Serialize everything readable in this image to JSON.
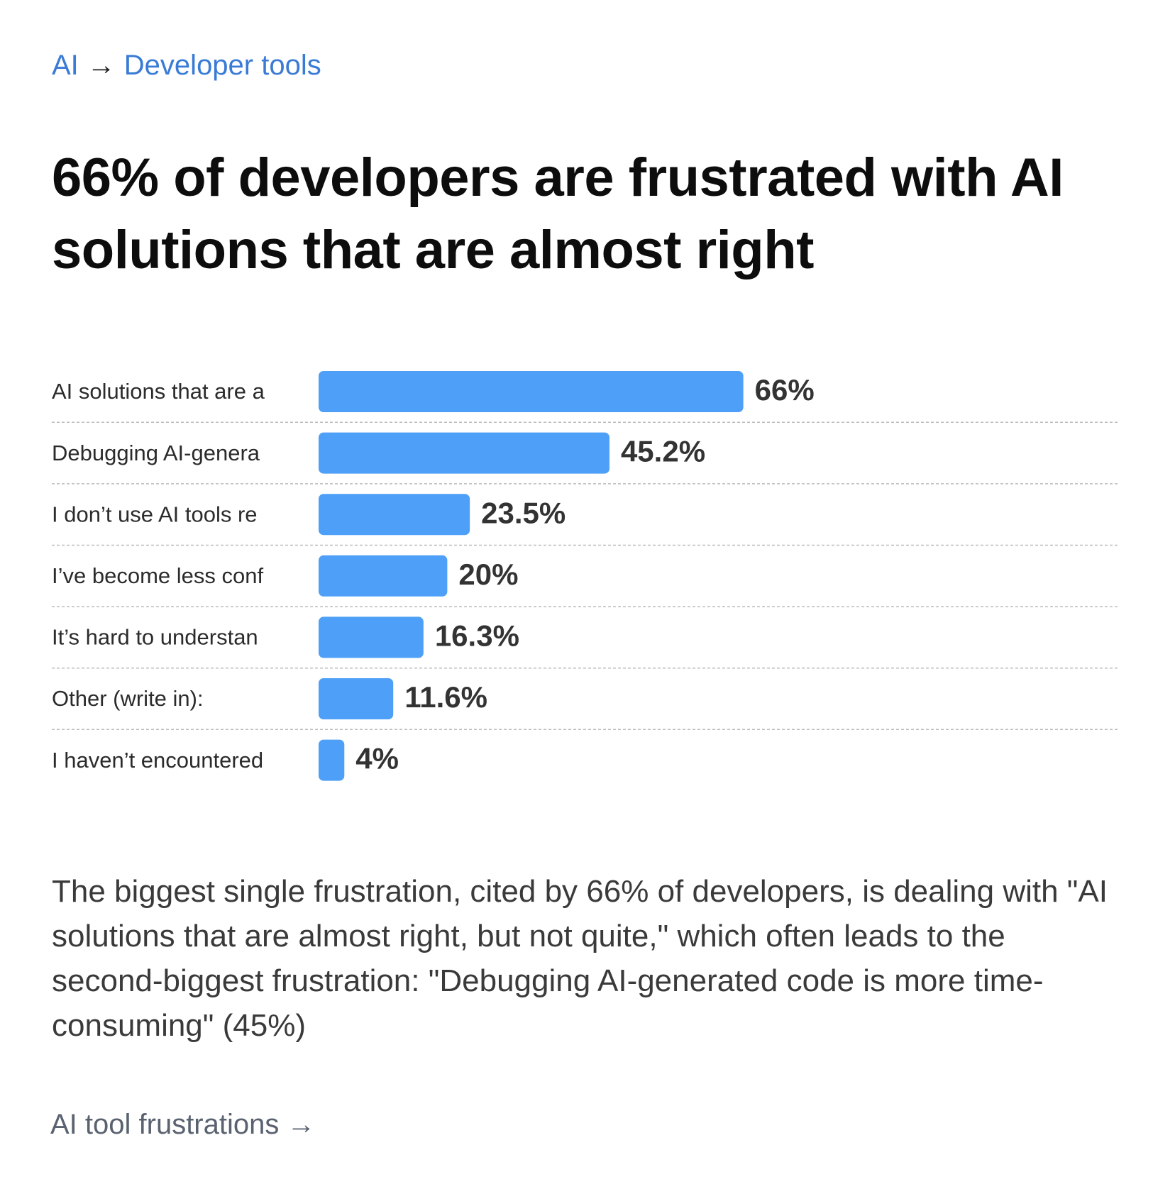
{
  "breadcrumb": {
    "parent": "AI",
    "separator": "→",
    "current": "Developer tools"
  },
  "chart_data": {
    "type": "bar",
    "orientation": "horizontal",
    "title": "66% of developers are frustrated with AI solutions that are almost right",
    "categories": [
      "AI solutions that are a",
      "Debugging AI-genera",
      "I don’t use AI tools re",
      "I’ve become less conf",
      "It’s hard to understan",
      "Other (write in):",
      "I haven’t encountered"
    ],
    "values": [
      66,
      45.2,
      23.5,
      20,
      16.3,
      11.6,
      4
    ],
    "value_labels": [
      "66%",
      "45.2%",
      "23.5%",
      "20%",
      "16.3%",
      "11.6%",
      "4%"
    ],
    "color": "#4d9ff8"
  },
  "description": "The biggest single frustration, cited by 66% of developers, is dealing with \"AI solutions that are almost right, but not quite,\" which often leads to the second-biggest frustration: \"Debugging AI-generated code is more time-consuming\" (45%)",
  "footer_link": "AI tool frustrations →"
}
